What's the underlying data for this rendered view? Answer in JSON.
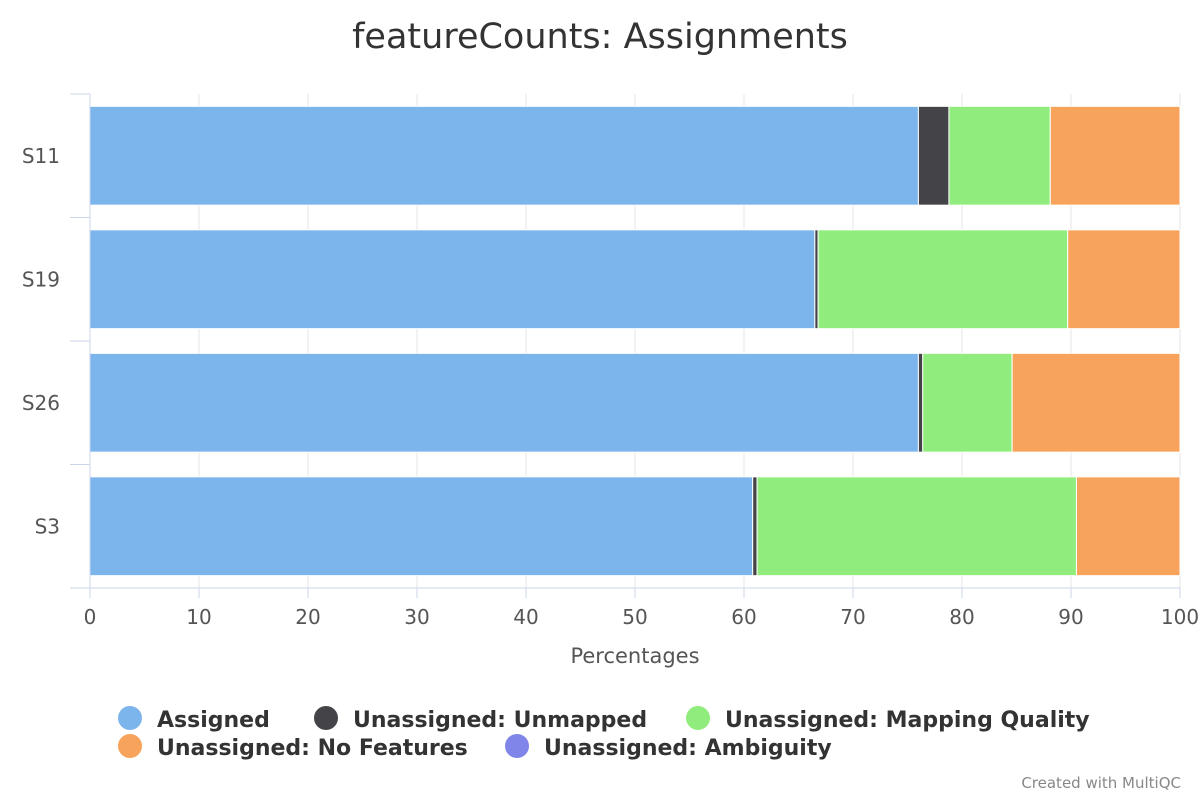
{
  "chart_data": {
    "type": "bar",
    "orientation": "horizontal",
    "stacking": "percent",
    "title": "featureCounts: Assignments",
    "xlabel": "Percentages",
    "ylabel": "",
    "xlim": [
      0,
      100
    ],
    "x_ticks": [
      "0",
      "10",
      "20",
      "30",
      "40",
      "50",
      "60",
      "70",
      "80",
      "90",
      "100"
    ],
    "grid": true,
    "legend_position": "bottom",
    "categories": [
      "S11",
      "S19",
      "S26",
      "S3"
    ],
    "series": [
      {
        "name": "Assigned",
        "color": "#7cb5ec",
        "values": [
          76.0,
          66.5,
          76.0,
          60.8
        ]
      },
      {
        "name": "Unassigned: Unmapped",
        "color": "#434348",
        "values": [
          2.8,
          0.3,
          0.4,
          0.4
        ]
      },
      {
        "name": "Unassigned: Mapping Quality",
        "color": "#90ed7d",
        "values": [
          9.3,
          22.9,
          8.2,
          29.3
        ]
      },
      {
        "name": "Unassigned: No Features",
        "color": "#f7a35c",
        "values": [
          11.9,
          10.3,
          15.4,
          9.5
        ]
      },
      {
        "name": "Unassigned: Ambiguity",
        "color": "#8085e9",
        "values": [
          0.0,
          0.0,
          0.0,
          0.0
        ]
      }
    ]
  },
  "credits": "Created with MultiQC"
}
